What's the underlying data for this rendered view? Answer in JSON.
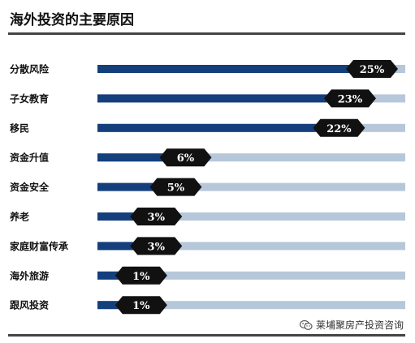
{
  "chart_data": {
    "type": "bar",
    "orientation": "horizontal",
    "title": "海外投资的主要原因",
    "categories": [
      "分散风险",
      "子女教育",
      "移民",
      "资金升值",
      "资金安全",
      "养老",
      "家庭财富传承",
      "海外旅游",
      "跟风投资"
    ],
    "values": [
      25,
      23,
      22,
      6,
      5,
      3,
      3,
      1,
      1
    ],
    "value_labels": [
      "25%",
      "23%",
      "22%",
      "6%",
      "5%",
      "3%",
      "3%",
      "1%",
      "1%"
    ],
    "xlim": [
      0,
      25
    ],
    "grid": false,
    "colors": {
      "bar": "#143f7c",
      "track": "#b7c7da",
      "badge": "#111111"
    }
  },
  "watermark": {
    "text": "莱埔聚房产投资咨询"
  }
}
